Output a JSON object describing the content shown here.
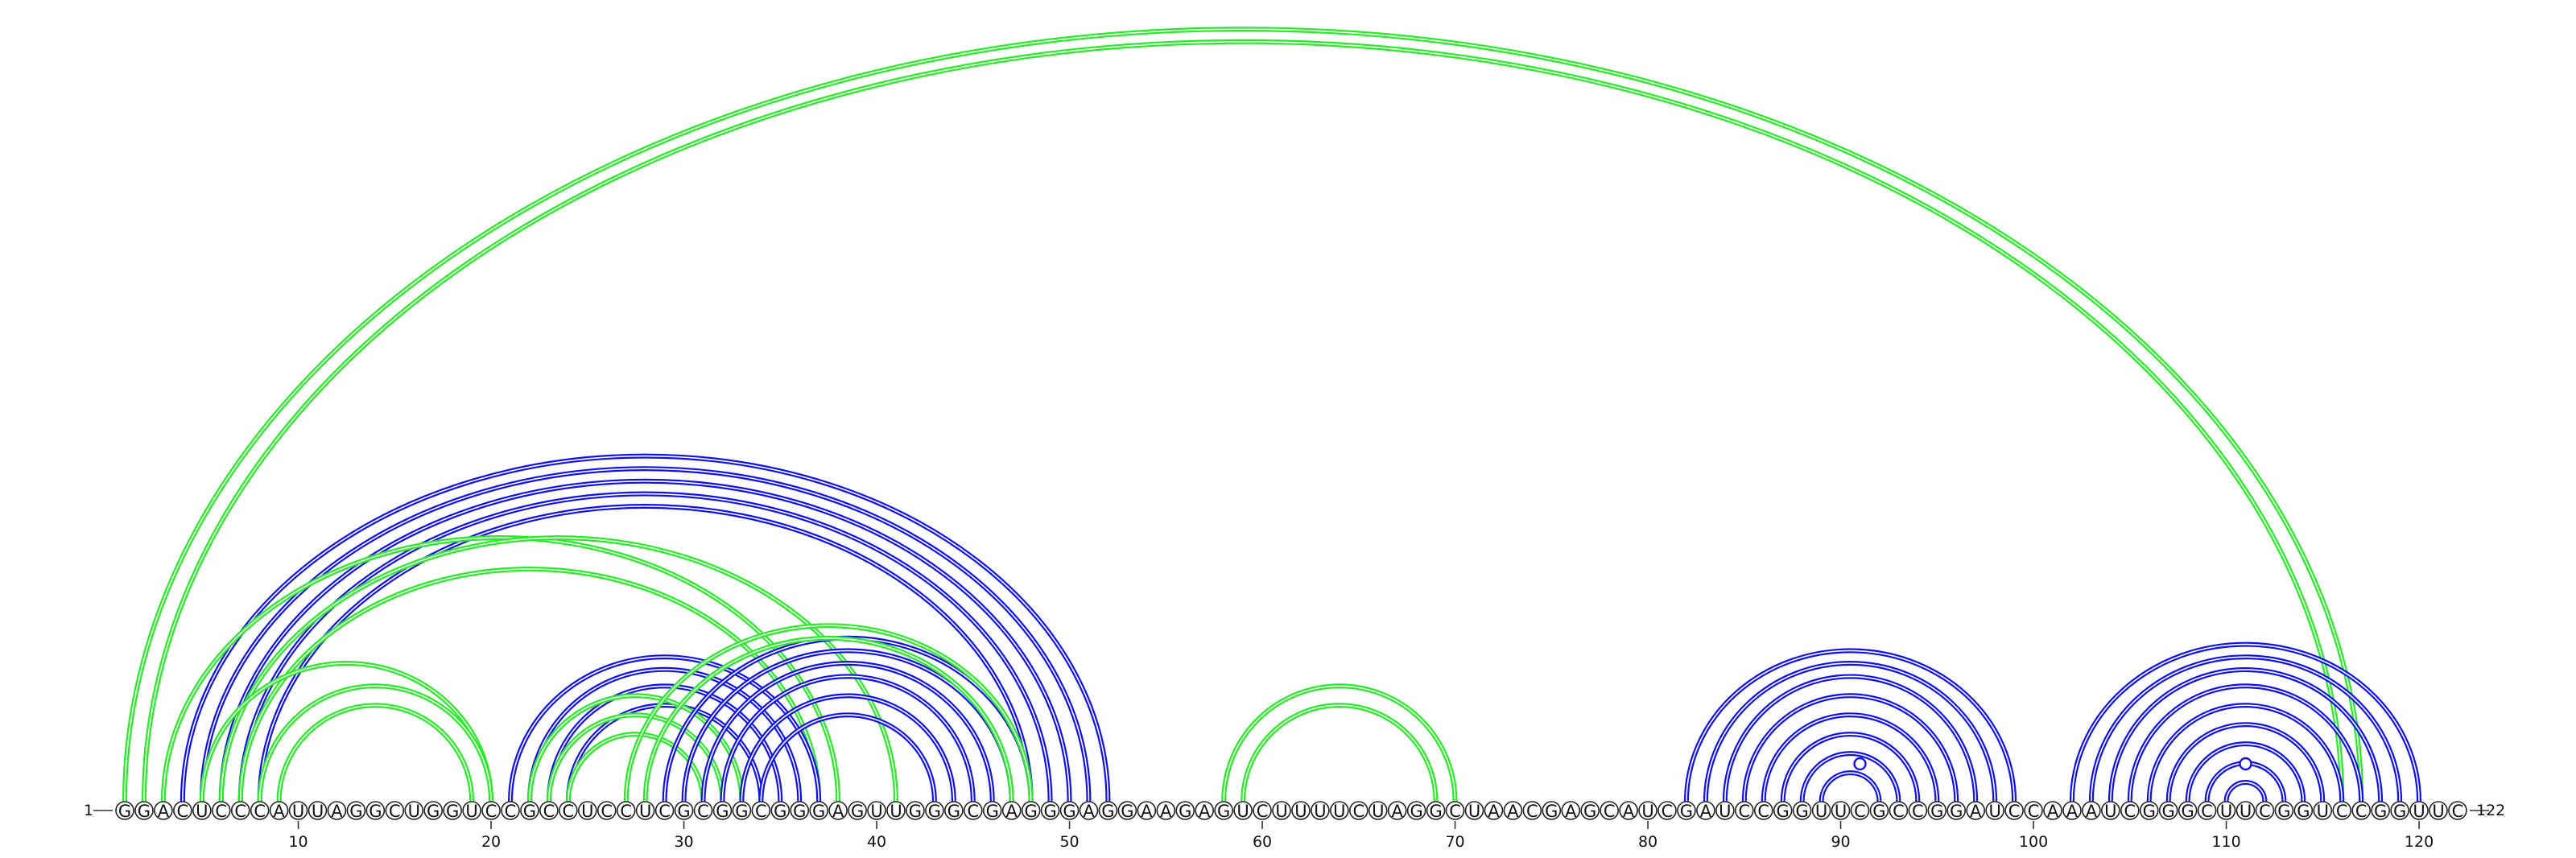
{
  "diagram": {
    "type": "rna-arc-diagram",
    "sequence": "GGACUCCCAUUAGGCUGGUCCGCCUCCUCGCGGCGGGAGUUGGGCGAGGGAGGAAGAGUCUUUUCUAGGCUAACGAGCAUCGAUCCGGUUCGCCGGAUCCAAAUCGGGCUUCGGUCCGGUUC",
    "start_label": "1",
    "end_label": "122",
    "tick_labels": [
      "10",
      "20",
      "30",
      "40",
      "50",
      "60",
      "70",
      "80",
      "90",
      "100",
      "110",
      "120"
    ],
    "colors": {
      "blue": "#1010ee",
      "green": "#22ee22",
      "marker": "#1010ee"
    },
    "stems": [
      {
        "color": "green",
        "pairs": [
          [
            1,
            117
          ],
          [
            2,
            116
          ]
        ]
      },
      {
        "color": "blue",
        "pairs": [
          [
            4,
            52
          ],
          [
            5,
            51
          ],
          [
            6,
            50
          ],
          [
            7,
            49
          ],
          [
            8,
            48
          ]
        ]
      },
      {
        "color": "green",
        "pairs": [
          [
            3,
            38
          ],
          [
            6,
            41
          ],
          [
            7,
            37
          ],
          [
            5,
            20
          ]
        ]
      },
      {
        "color": "green",
        "pairs": [
          [
            8,
            20
          ],
          [
            9,
            19
          ]
        ]
      },
      {
        "color": "blue",
        "pairs": [
          [
            21,
            37
          ],
          [
            22,
            36
          ],
          [
            23,
            35
          ],
          [
            24,
            34
          ]
        ]
      },
      {
        "color": "green",
        "pairs": [
          [
            22,
            33
          ],
          [
            23,
            32
          ],
          [
            24,
            31
          ]
        ]
      },
      {
        "color": "blue",
        "pairs": [
          [
            29,
            48
          ],
          [
            30,
            47
          ],
          [
            31,
            46
          ],
          [
            32,
            45
          ],
          [
            33,
            44
          ],
          [
            34,
            43
          ]
        ]
      },
      {
        "color": "green",
        "pairs": [
          [
            27,
            48
          ],
          [
            28,
            47
          ]
        ]
      },
      {
        "color": "green",
        "pairs": [
          [
            58,
            70
          ],
          [
            59,
            69
          ]
        ]
      },
      {
        "color": "blue",
        "pairs": [
          [
            82,
            99
          ],
          [
            83,
            98
          ],
          [
            84,
            97
          ],
          [
            85,
            96
          ],
          [
            86,
            95
          ],
          [
            87,
            94
          ],
          [
            88,
            93
          ],
          [
            89,
            92
          ]
        ]
      },
      {
        "color": "blue",
        "pairs": [
          [
            102,
            120
          ],
          [
            103,
            119
          ],
          [
            104,
            118
          ],
          [
            105,
            117
          ],
          [
            106,
            116
          ],
          [
            107,
            115
          ],
          [
            108,
            114
          ],
          [
            109,
            113
          ],
          [
            110,
            112
          ]
        ]
      }
    ],
    "markers": [
      91,
      111
    ]
  }
}
